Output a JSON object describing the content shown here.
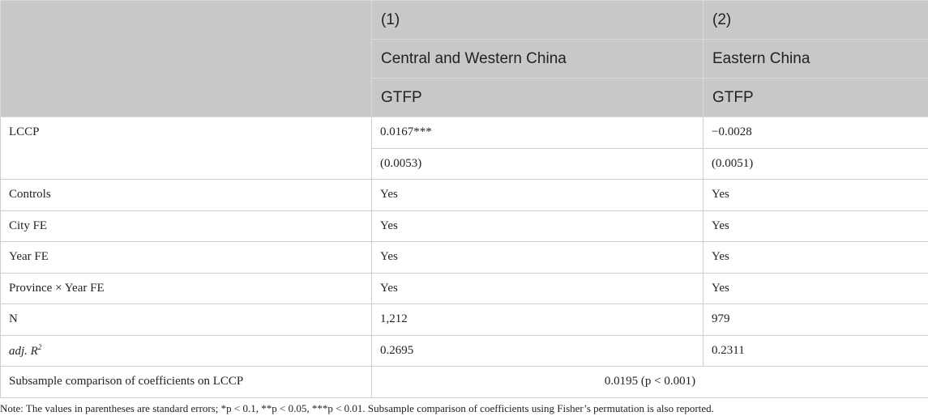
{
  "table": {
    "columns": [
      {
        "number": "(1)",
        "sample": "Central and Western China",
        "dependent": "GTFP"
      },
      {
        "number": "(2)",
        "sample": "Eastern China",
        "dependent": "GTFP"
      }
    ],
    "rows": [
      {
        "label": "LCCP",
        "values": [
          "0.0167***",
          "−0.0028"
        ],
        "se": [
          "(0.0053)",
          "(0.0051)"
        ]
      },
      {
        "label": "Controls",
        "values": [
          "Yes",
          "Yes"
        ]
      },
      {
        "label": "City FE",
        "values": [
          "Yes",
          "Yes"
        ]
      },
      {
        "label": "Year FE",
        "values": [
          "Yes",
          "Yes"
        ]
      },
      {
        "label": "Province × Year FE",
        "values": [
          "Yes",
          "Yes"
        ]
      },
      {
        "label": "N",
        "values": [
          "1,212",
          "979"
        ]
      },
      {
        "label": "adj. R",
        "label_sup": "2",
        "values": [
          "0.2695",
          "0.2311"
        ]
      }
    ],
    "comparison": {
      "label": "Subsample comparison of coefficients on LCCP",
      "value": "0.0195 (p < 0.001)"
    },
    "note": "Note: The values in parentheses are standard errors; *p < 0.1, **p < 0.05, ***p < 0.01. Subsample comparison of coefficients using Fisher’s permutation is also reported."
  }
}
